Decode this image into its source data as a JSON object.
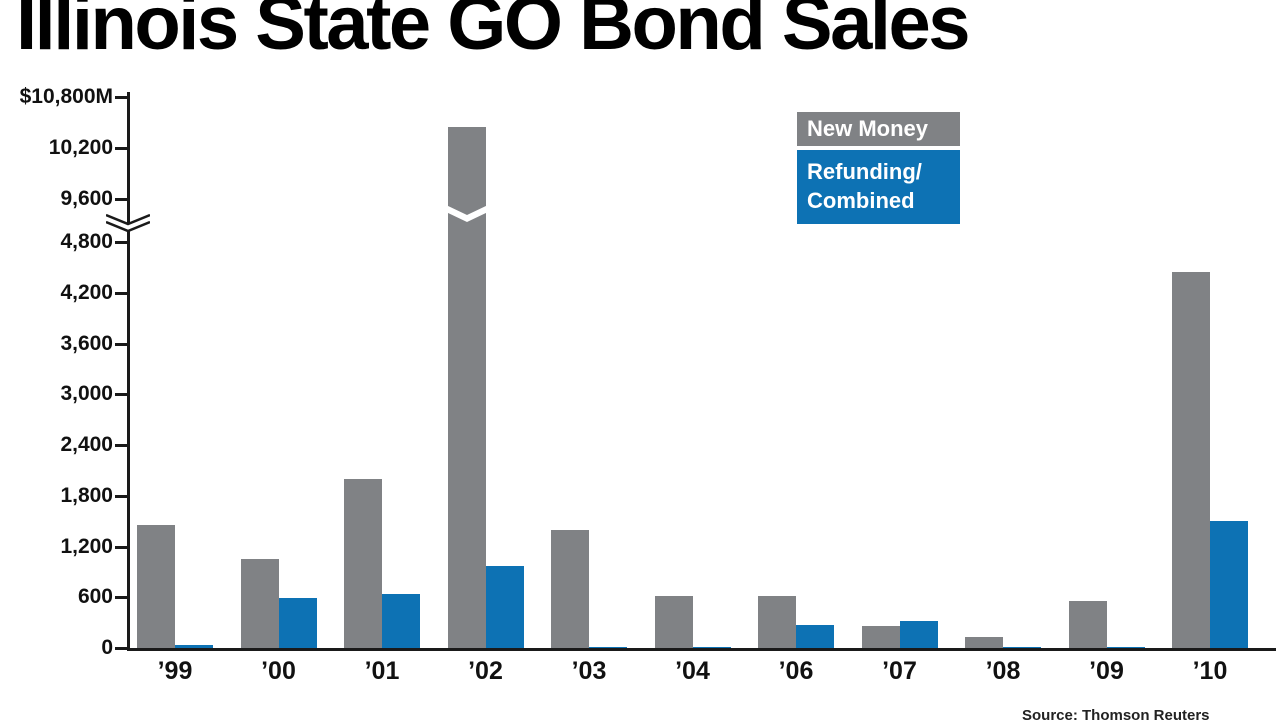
{
  "title": "Illinois State GO Bond Sales",
  "source": "Source: Thomson Reuters",
  "legend": [
    {
      "label": "New Money",
      "color": "#808285"
    },
    {
      "label": "Refunding/\nCombined",
      "color": "#0d72b4"
    }
  ],
  "chart_data": {
    "type": "bar",
    "title": "Illinois State GO Bond Sales",
    "unit": "$M",
    "categories": [
      "’99",
      "’00",
      "’01",
      "’02",
      "’03",
      "’04",
      "’06",
      "’07",
      "’08",
      "’09",
      "’10"
    ],
    "series": [
      {
        "name": "New Money",
        "color": "#808285",
        "values": [
          1450,
          1050,
          2000,
          10450,
          1400,
          610,
          620,
          260,
          130,
          550,
          4450
        ]
      },
      {
        "name": "Refunding/Combined",
        "color": "#0d72b4",
        "values": [
          40,
          590,
          640,
          970,
          15,
          15,
          275,
          320,
          15,
          15,
          1500
        ]
      }
    ],
    "ylim": [
      0,
      10800
    ],
    "axis_break": [
      4800,
      9600
    ],
    "grid": false,
    "legend_position": "top-right",
    "yticks_lower": [
      0,
      600,
      1200,
      1800,
      2400,
      3000,
      3600,
      4200,
      4800
    ],
    "ytick_labels_lower": [
      "0",
      "600",
      "1,200",
      "1,800",
      "2,400",
      "3,000",
      "3,600",
      "4,200",
      "4,800"
    ],
    "yticks_upper": [
      9600,
      10200,
      10800
    ],
    "ytick_labels_upper": [
      "9,600",
      "10,200",
      "$10,800M"
    ]
  }
}
